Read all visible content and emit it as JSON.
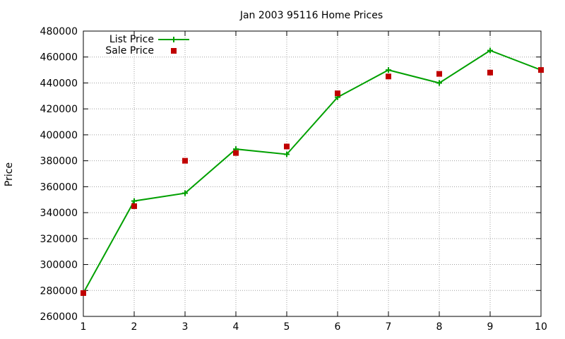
{
  "chart_data": {
    "type": "line",
    "title": "Jan 2003 95116 Home Prices",
    "xlabel": "",
    "ylabel": "Price",
    "xlim": [
      1,
      10
    ],
    "ylim": [
      260000,
      480000
    ],
    "x_ticks": [
      "1",
      "2",
      "3",
      "4",
      "5",
      "6",
      "7",
      "8",
      "9",
      "10"
    ],
    "y_ticks": [
      "260000",
      "280000",
      "300000",
      "320000",
      "340000",
      "360000",
      "380000",
      "400000",
      "420000",
      "440000",
      "460000",
      "480000"
    ],
    "grid": true,
    "legend_position": "top-left",
    "series": [
      {
        "name": "List Price",
        "style": "line-with-plus-markers",
        "color": "#00a000",
        "points": [
          {
            "x": 1,
            "y": 278000
          },
          {
            "x": 2,
            "y": 349000
          },
          {
            "x": 3,
            "y": 355000
          },
          {
            "x": 4,
            "y": 389000
          },
          {
            "x": 5,
            "y": 385000
          },
          {
            "x": 6,
            "y": 429000
          },
          {
            "x": 7,
            "y": 450000
          },
          {
            "x": 8,
            "y": 440000
          },
          {
            "x": 9,
            "y": 465000
          },
          {
            "x": 10,
            "y": 450000
          }
        ]
      },
      {
        "name": "Sale Price",
        "style": "square-markers",
        "color": "#c00000",
        "points": [
          {
            "x": 1,
            "y": 278000
          },
          {
            "x": 2,
            "y": 345000
          },
          {
            "x": 3,
            "y": 380000
          },
          {
            "x": 4,
            "y": 386000
          },
          {
            "x": 5,
            "y": 391000
          },
          {
            "x": 6,
            "y": 432000
          },
          {
            "x": 7,
            "y": 445000
          },
          {
            "x": 8,
            "y": 447000
          },
          {
            "x": 9,
            "y": 448000
          },
          {
            "x": 10,
            "y": 450000
          }
        ]
      }
    ]
  }
}
